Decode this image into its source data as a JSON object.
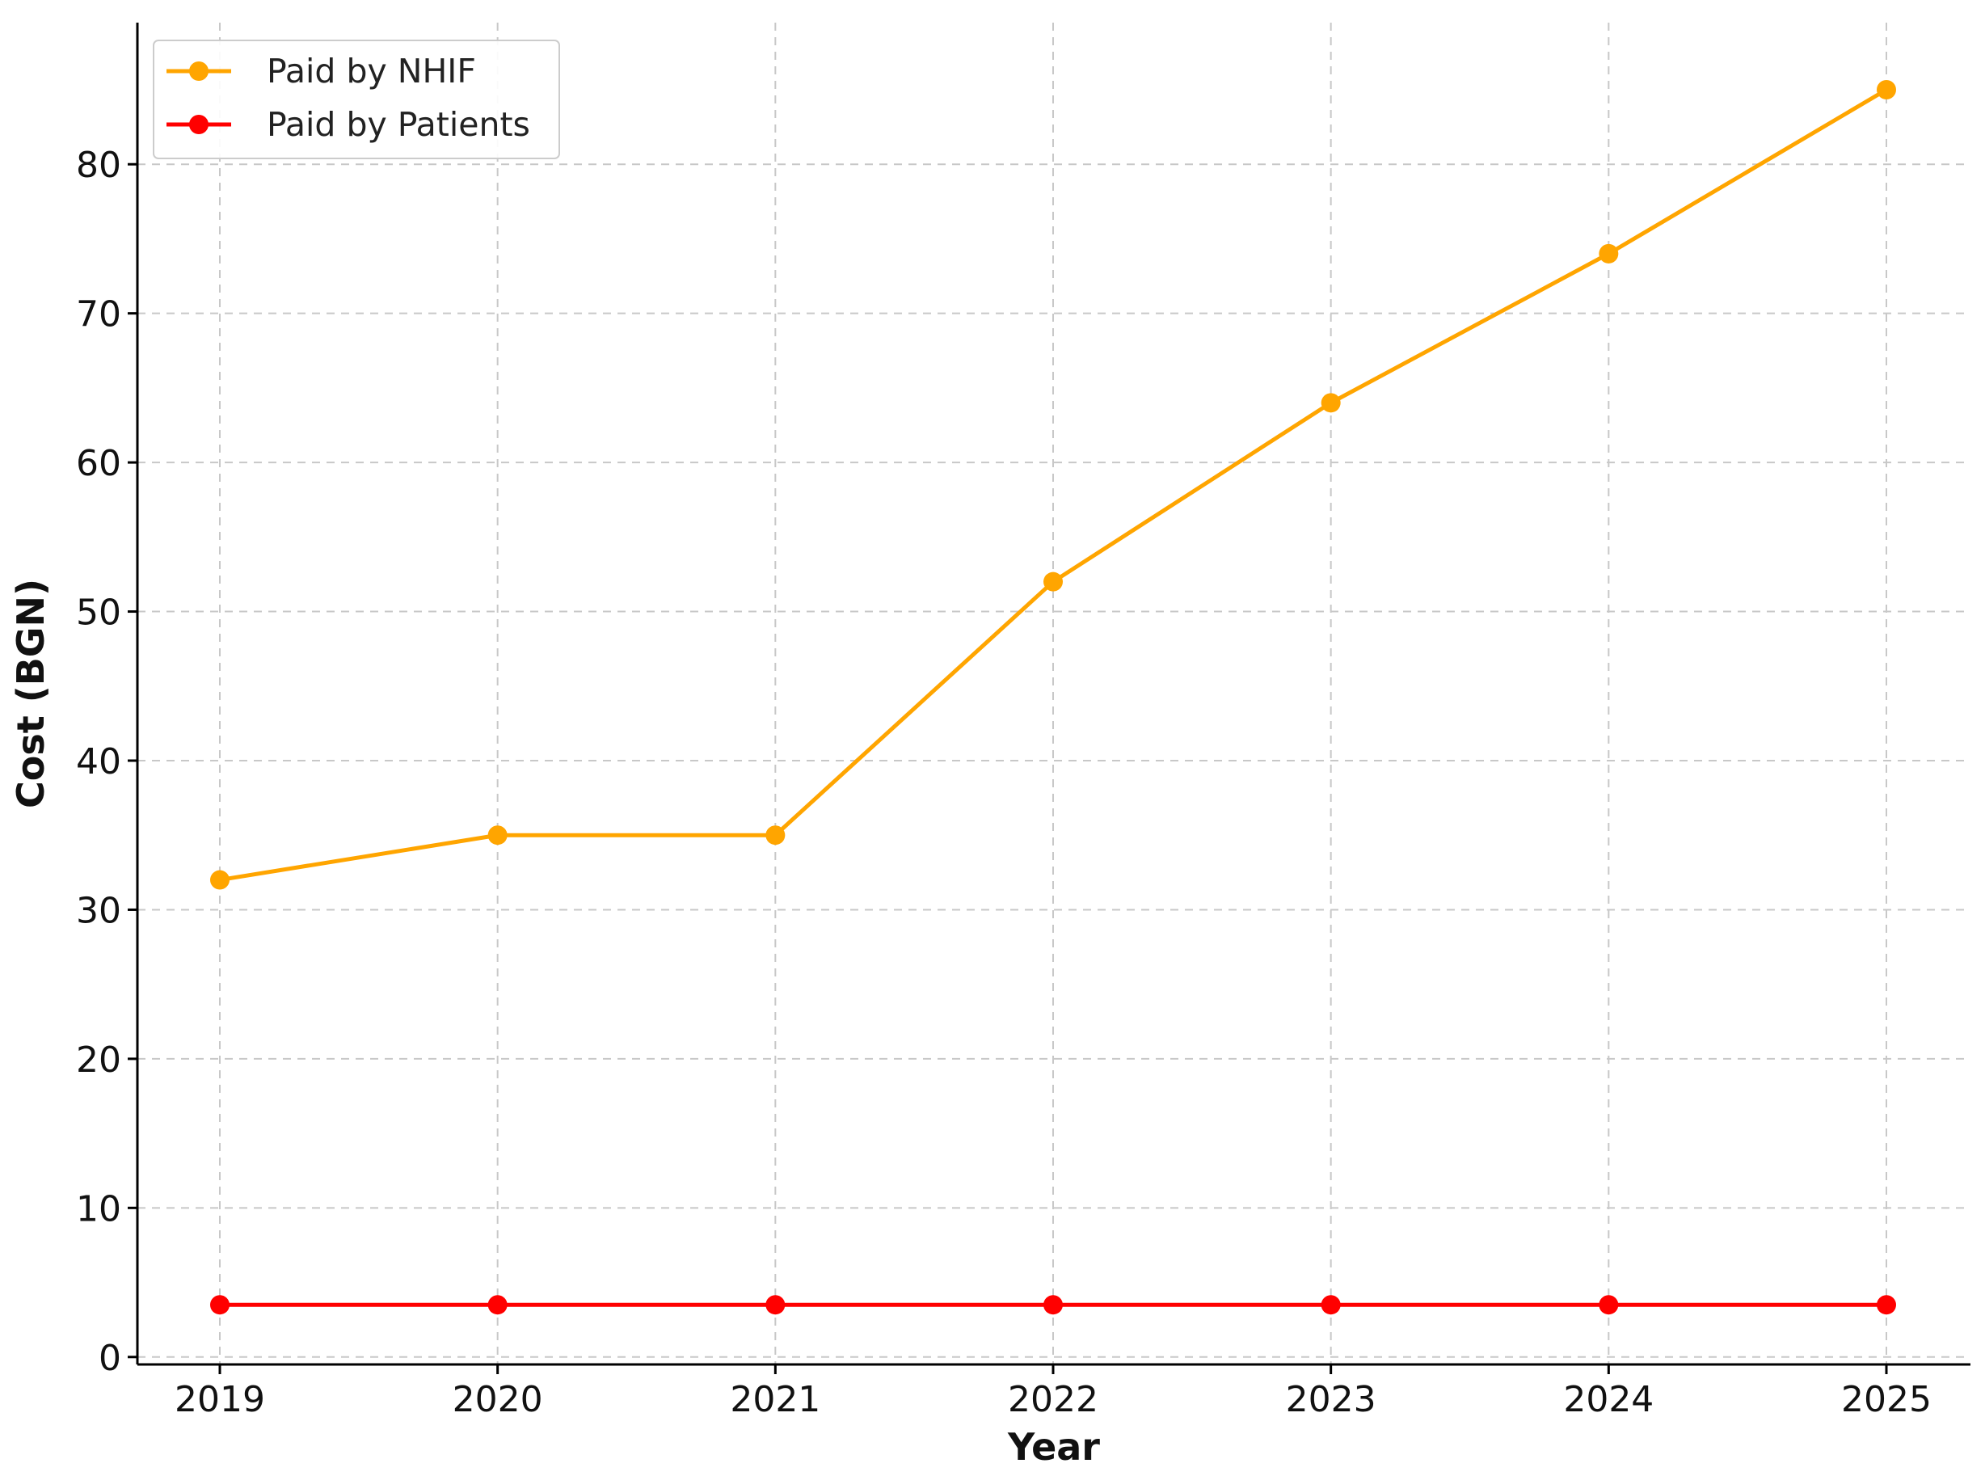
{
  "chart_data": {
    "type": "line",
    "title": "",
    "xlabel": "Year",
    "ylabel": "Cost (BGN)",
    "categories": [
      "2019",
      "2020",
      "2021",
      "2022",
      "2023",
      "2024",
      "2025"
    ],
    "yticks": [
      0,
      10,
      20,
      30,
      40,
      50,
      60,
      70,
      80
    ],
    "ylim": [
      -0.5,
      89.5
    ],
    "grid": true,
    "legend_position": "top-left",
    "series": [
      {
        "name": "Paid by NHIF",
        "color": "#FFA500",
        "marker": "circle",
        "values": [
          32,
          35,
          35,
          52,
          64,
          74,
          85
        ]
      },
      {
        "name": "Paid by Patients",
        "color": "#FF0000",
        "marker": "circle",
        "values": [
          3.5,
          3.5,
          3.5,
          3.5,
          3.5,
          3.5,
          3.5
        ]
      }
    ]
  }
}
